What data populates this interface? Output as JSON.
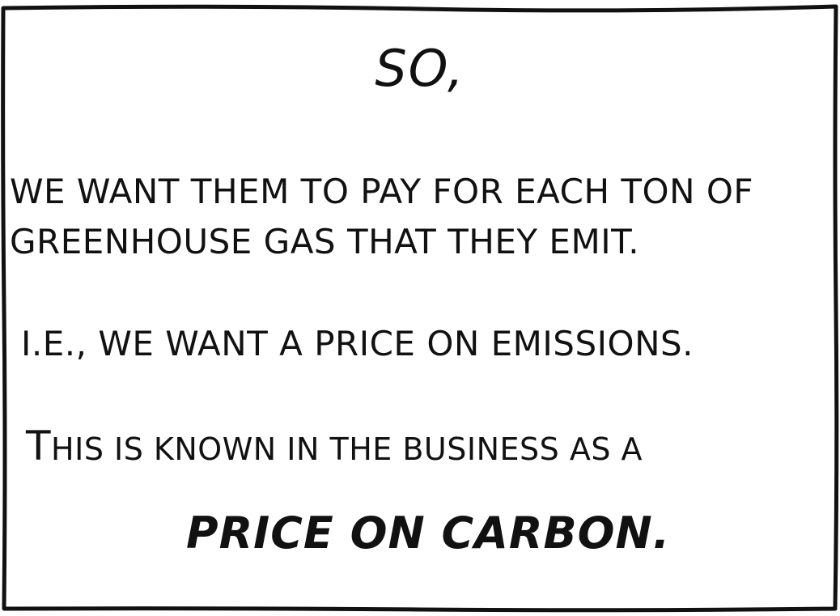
{
  "panel": {
    "heading": "SO,",
    "line1": "WE WANT THEM TO PAY FOR EACH TON OF",
    "line2": "GREENHOUSE GAS THAT THEY EMIT.",
    "line3": "I.E., WE WANT A PRICE ON EMISSIONS.",
    "line4_cap": "T",
    "line4_rest": "HIS IS KNOWN IN THE BUSINESS AS A",
    "punchline": "PRICE ON CARBON."
  },
  "colors": {
    "ink": "#111111",
    "paper": "#ffffff"
  }
}
